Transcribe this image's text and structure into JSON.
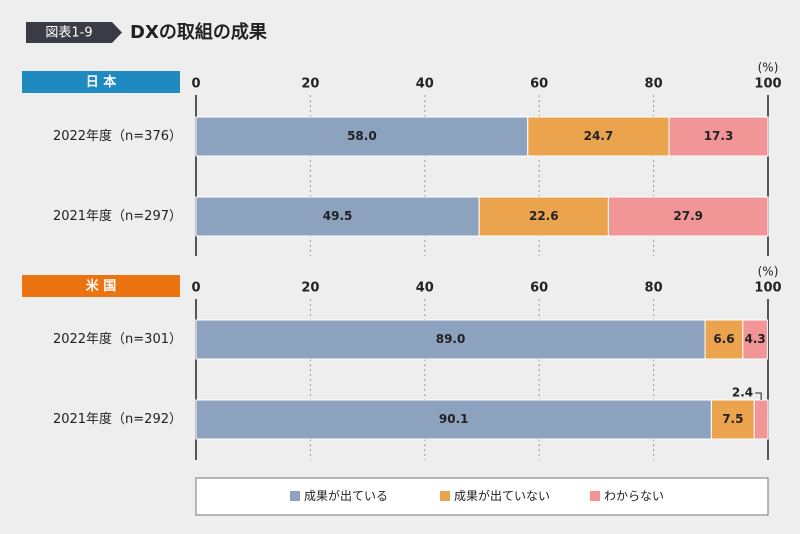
{
  "header": {
    "figure_label": "図表1-9",
    "title": "DXの取組の成果"
  },
  "chart_data": [
    {
      "type": "bar",
      "stacked": true,
      "orientation": "horizontal",
      "panel_label": "日 本",
      "panel_color": "#1f8ac0",
      "unit_label": "(%)",
      "categories": [
        "2022年度（n=376）",
        "2021年度（n=297）"
      ],
      "series": [
        {
          "name": "成果が出ている",
          "color": "#8da2bf",
          "values": [
            58.0,
            49.5
          ],
          "value_labels": [
            "58.0",
            "49.5"
          ]
        },
        {
          "name": "成果が出ていない",
          "color": "#eca34d",
          "values": [
            24.7,
            22.6
          ],
          "value_labels": [
            "24.7",
            "22.6"
          ]
        },
        {
          "name": "わからない",
          "color": "#f19597",
          "values": [
            17.3,
            27.9
          ],
          "value_labels": [
            "17.3",
            "27.9"
          ]
        }
      ],
      "xlim": [
        0,
        100
      ],
      "xticks": [
        0,
        20,
        40,
        60,
        80,
        100
      ]
    },
    {
      "type": "bar",
      "stacked": true,
      "orientation": "horizontal",
      "panel_label": "米 国",
      "panel_color": "#ec7410",
      "unit_label": "(%)",
      "categories": [
        "2022年度（n=301）",
        "2021年度（n=292）"
      ],
      "series": [
        {
          "color": "#8da2bf",
          "values": [
            89.0,
            90.1
          ],
          "value_labels": [
            "89.0",
            "90.1"
          ]
        },
        {
          "color": "#eca34d",
          "values": [
            6.6,
            7.5
          ],
          "value_labels": [
            "6.6",
            "7.5"
          ]
        },
        {
          "color": "#f19597",
          "values": [
            4.3,
            2.4
          ],
          "value_labels": [
            "4.3",
            "2.4"
          ]
        }
      ],
      "xlim": [
        0,
        100
      ],
      "xticks": [
        0,
        20,
        40,
        60,
        80,
        100
      ]
    }
  ]
}
